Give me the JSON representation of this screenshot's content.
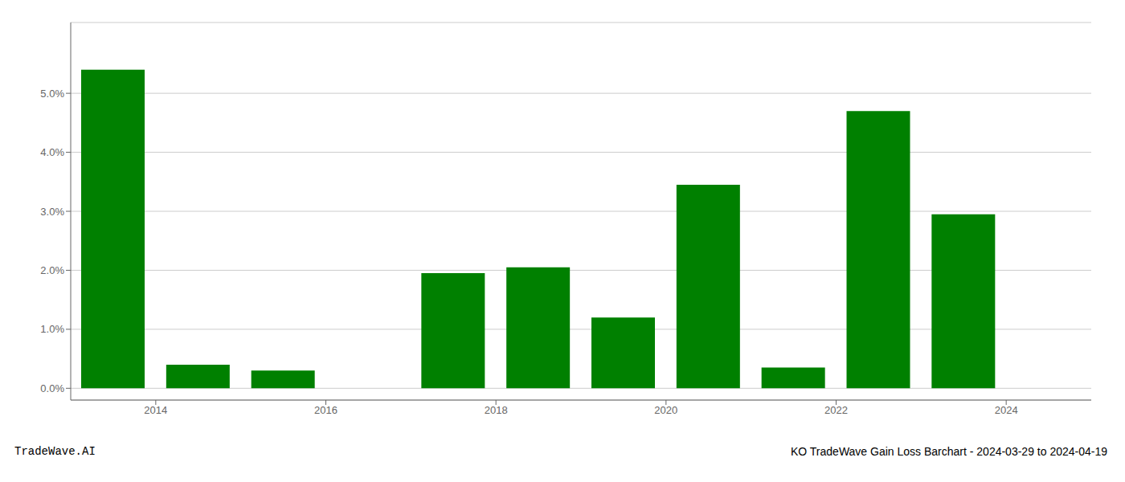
{
  "chart_data": {
    "type": "bar",
    "x": [
      2013.5,
      2014.5,
      2015.5,
      2016.5,
      2017.5,
      2018.5,
      2019.5,
      2020.5,
      2021.5,
      2022.5,
      2023.5
    ],
    "values": [
      0.054,
      0.004,
      0.003,
      0.0,
      0.0195,
      0.0205,
      0.012,
      0.0345,
      0.0035,
      0.047,
      0.0295
    ],
    "color": "#008000",
    "xlim": [
      2013.0,
      2025.0
    ],
    "xticks": [
      2014,
      2016,
      2018,
      2020,
      2022,
      2024
    ],
    "ylim": [
      -0.002,
      0.062
    ],
    "yticks": [
      {
        "value": 0.0,
        "label": "0.0%"
      },
      {
        "value": 0.01,
        "label": "1.0%"
      },
      {
        "value": 0.02,
        "label": "2.0%"
      },
      {
        "value": 0.03,
        "label": "3.0%"
      },
      {
        "value": 0.04,
        "label": "4.0%"
      },
      {
        "value": 0.05,
        "label": "5.0%"
      }
    ],
    "grid": true,
    "annotations": [
      "TradeWave.AI",
      "KO TradeWave Gain Loss Barchart - 2024-03-29 to 2024-04-19"
    ]
  }
}
